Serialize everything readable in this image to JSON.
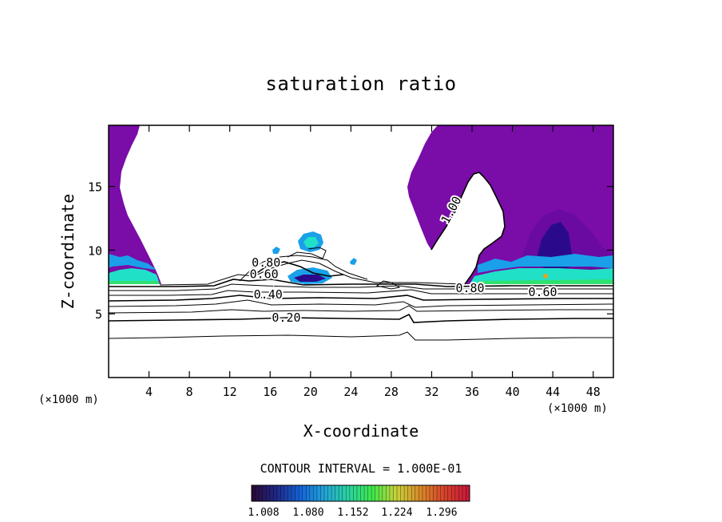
{
  "chart_data": {
    "type": "contour",
    "title": "saturation ratio",
    "xlabel": "X-coordinate",
    "ylabel": "Z-coordinate",
    "x_unit": "(×1000 m)",
    "y_unit": "(×1000 m)",
    "xlim": [
      0,
      50
    ],
    "ylim": [
      0,
      19.8
    ],
    "x_ticks": [
      4,
      8,
      12,
      16,
      20,
      24,
      28,
      32,
      36,
      40,
      44,
      48
    ],
    "y_ticks": [
      5,
      10,
      15
    ],
    "contour_interval": "CONTOUR INTERVAL = 1.000E-01",
    "contour_labels": [
      {
        "text": "0.20",
        "x": 17.6,
        "z": 4.4
      },
      {
        "text": "0.40",
        "x": 15.8,
        "z": 6.2
      },
      {
        "text": "0.60",
        "x": 15.4,
        "z": 7.8
      },
      {
        "text": "0.80",
        "x": 15.6,
        "z": 8.7
      },
      {
        "text": "0.80",
        "x": 35.8,
        "z": 6.7
      },
      {
        "text": "0.60",
        "x": 43.0,
        "z": 6.4
      },
      {
        "text": "1.00",
        "x": 34.3,
        "z": 13.0
      }
    ],
    "colorbar": {
      "ticks": [
        "1.008",
        "1.080",
        "1.152",
        "1.224",
        "1.296"
      ],
      "colors": [
        "#2a0a3a",
        "#1e2a8a",
        "#1565d8",
        "#22a6d6",
        "#2ad3a0",
        "#3ee84a",
        "#c8d23a",
        "#d98a2a",
        "#d8442a",
        "#c8183a"
      ]
    },
    "fill_colors": {
      "supersaturated": "#7a0ca8",
      "inner": "#6a0aa0",
      "core": "#2a0a8a",
      "blue": "#1aa0e8",
      "cyan": "#20e0c8",
      "green": "#30e070"
    }
  }
}
